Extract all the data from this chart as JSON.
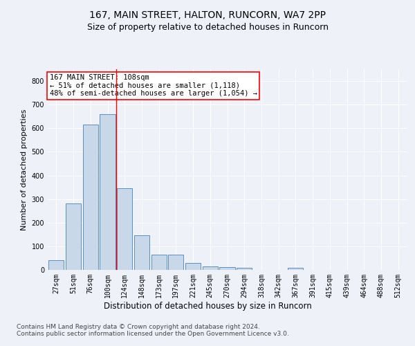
{
  "title1": "167, MAIN STREET, HALTON, RUNCORN, WA7 2PP",
  "title2": "Size of property relative to detached houses in Runcorn",
  "xlabel": "Distribution of detached houses by size in Runcorn",
  "ylabel": "Number of detached properties",
  "categories": [
    "27sqm",
    "51sqm",
    "76sqm",
    "100sqm",
    "124sqm",
    "148sqm",
    "173sqm",
    "197sqm",
    "221sqm",
    "245sqm",
    "270sqm",
    "294sqm",
    "318sqm",
    "342sqm",
    "367sqm",
    "391sqm",
    "415sqm",
    "439sqm",
    "464sqm",
    "488sqm",
    "512sqm"
  ],
  "values": [
    40,
    280,
    615,
    660,
    345,
    148,
    65,
    65,
    30,
    15,
    12,
    10,
    0,
    0,
    10,
    0,
    0,
    0,
    0,
    0,
    0
  ],
  "bar_color": "#c8d8e8",
  "bar_edge_color": "#5a8fc0",
  "vline_color": "red",
  "vline_pos": 3.5,
  "annotation_text": "167 MAIN STREET: 108sqm\n← 51% of detached houses are smaller (1,118)\n48% of semi-detached houses are larger (1,054) →",
  "annotation_box_color": "white",
  "annotation_box_edge_color": "red",
  "ylim": [
    0,
    850
  ],
  "yticks": [
    0,
    100,
    200,
    300,
    400,
    500,
    600,
    700,
    800
  ],
  "footer": "Contains HM Land Registry data © Crown copyright and database right 2024.\nContains public sector information licensed under the Open Government Licence v3.0.",
  "bg_color": "#eef2f8",
  "plot_bg_color": "#eef2f8",
  "grid_color": "white",
  "title1_fontsize": 10,
  "title2_fontsize": 9,
  "xlabel_fontsize": 8.5,
  "ylabel_fontsize": 8,
  "tick_fontsize": 7,
  "annotation_fontsize": 7.5,
  "footer_fontsize": 6.5
}
